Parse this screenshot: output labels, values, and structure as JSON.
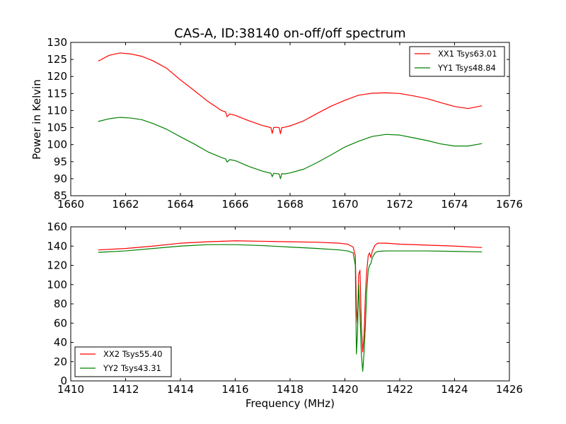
{
  "title": "CAS-A, ID:38140 on-off/off spectrum",
  "colors": {
    "xx": "#ff0000",
    "yy": "#008000",
    "axes": "#000000",
    "background": "#ffffff"
  },
  "chart_data": [
    {
      "type": "line",
      "title": "CAS-A, ID:38140 on-off/off spectrum",
      "xlabel": "",
      "ylabel": "Power in Kelvin",
      "xlim": [
        1660,
        1676
      ],
      "ylim": [
        85,
        130
      ],
      "xticks": [
        "1660",
        "1662",
        "1664",
        "1666",
        "1668",
        "1670",
        "1672",
        "1674",
        "1676"
      ],
      "yticks": [
        "85",
        "90",
        "95",
        "100",
        "105",
        "110",
        "115",
        "120",
        "125",
        "130"
      ],
      "grid": false,
      "legend_position": "top-right",
      "series": [
        {
          "name": "XX1 Tsys63.01",
          "color": "#ff0000",
          "x": [
            1661.0,
            1661.4,
            1661.8,
            1662.2,
            1662.6,
            1663.0,
            1663.5,
            1664.0,
            1664.5,
            1665.0,
            1665.5,
            1665.65,
            1665.7,
            1665.8,
            1666.0,
            1666.5,
            1667.0,
            1667.3,
            1667.35,
            1667.4,
            1667.5,
            1667.6,
            1667.65,
            1667.7,
            1667.8,
            1668.0,
            1668.5,
            1669.0,
            1669.5,
            1670.0,
            1670.5,
            1671.0,
            1671.5,
            1672.0,
            1672.5,
            1673.0,
            1673.5,
            1674.0,
            1674.5,
            1675.0
          ],
          "y": [
            124.5,
            126.2,
            126.9,
            126.6,
            125.9,
            124.6,
            122.4,
            119.0,
            115.9,
            112.7,
            110.0,
            109.6,
            108.2,
            109.0,
            108.6,
            107.0,
            105.6,
            105.0,
            103.3,
            105.0,
            105.1,
            105.0,
            103.2,
            105.0,
            105.1,
            105.5,
            107.0,
            109.2,
            111.3,
            113.0,
            114.5,
            115.1,
            115.2,
            115.0,
            114.3,
            113.5,
            112.3,
            111.2,
            110.6,
            111.4
          ]
        },
        {
          "name": "YY1 Tsys48.84",
          "color": "#008000",
          "x": [
            1661.0,
            1661.4,
            1661.8,
            1662.2,
            1662.6,
            1663.0,
            1663.5,
            1664.0,
            1664.5,
            1665.0,
            1665.5,
            1665.65,
            1665.7,
            1665.8,
            1666.0,
            1666.5,
            1667.0,
            1667.3,
            1667.35,
            1667.4,
            1667.5,
            1667.6,
            1667.65,
            1667.7,
            1667.8,
            1668.0,
            1668.5,
            1669.0,
            1669.5,
            1670.0,
            1670.5,
            1671.0,
            1671.5,
            1672.0,
            1672.5,
            1673.0,
            1673.5,
            1674.0,
            1674.5,
            1675.0
          ],
          "y": [
            106.8,
            107.6,
            108.0,
            107.8,
            107.3,
            106.2,
            104.5,
            102.3,
            100.2,
            97.9,
            96.2,
            95.8,
            94.9,
            95.6,
            95.3,
            93.6,
            92.2,
            91.6,
            90.6,
            91.6,
            91.5,
            91.4,
            90.0,
            91.5,
            91.4,
            91.7,
            92.8,
            94.8,
            97.0,
            99.3,
            101.0,
            102.4,
            103.0,
            102.8,
            102.0,
            101.2,
            100.2,
            99.6,
            99.6,
            100.3
          ]
        }
      ]
    },
    {
      "type": "line",
      "title": "",
      "xlabel": "Frequency (MHz)",
      "ylabel": "",
      "xlim": [
        1410,
        1426
      ],
      "ylim": [
        0,
        160
      ],
      "xticks": [
        "1410",
        "1412",
        "1414",
        "1416",
        "1418",
        "1420",
        "1422",
        "1424",
        "1426"
      ],
      "yticks": [
        "0",
        "20",
        "40",
        "60",
        "80",
        "100",
        "120",
        "140",
        "160"
      ],
      "grid": false,
      "legend_position": "bottom-left",
      "series": [
        {
          "name": "XX2 Tsys55.40",
          "color": "#ff0000",
          "x": [
            1411.0,
            1412.0,
            1413.0,
            1414.0,
            1415.0,
            1416.0,
            1417.0,
            1418.0,
            1419.0,
            1419.8,
            1420.1,
            1420.3,
            1420.38,
            1420.42,
            1420.46,
            1420.5,
            1420.55,
            1420.6,
            1420.65,
            1420.7,
            1420.75,
            1420.8,
            1420.85,
            1420.9,
            1420.95,
            1421.0,
            1421.1,
            1421.2,
            1421.5,
            1422.0,
            1423.0,
            1424.0,
            1425.0
          ],
          "y": [
            136.0,
            137.5,
            140.0,
            143.0,
            144.5,
            145.5,
            145.0,
            144.5,
            144.0,
            143.0,
            142.0,
            139.0,
            130.0,
            75.0,
            60.0,
            110.0,
            115.0,
            58.0,
            30.0,
            48.0,
            92.0,
            115.0,
            130.0,
            133.0,
            128.0,
            135.0,
            141.0,
            143.0,
            143.0,
            142.0,
            141.0,
            140.0,
            138.5
          ]
        },
        {
          "name": "YY2 Tsys43.31",
          "color": "#008000",
          "x": [
            1411.0,
            1412.0,
            1413.0,
            1414.0,
            1415.0,
            1416.0,
            1417.0,
            1418.0,
            1419.0,
            1419.8,
            1420.1,
            1420.3,
            1420.38,
            1420.42,
            1420.46,
            1420.5,
            1420.55,
            1420.6,
            1420.65,
            1420.7,
            1420.75,
            1420.8,
            1420.85,
            1420.9,
            1420.95,
            1421.0,
            1421.1,
            1421.2,
            1421.5,
            1422.0,
            1423.0,
            1424.0,
            1425.0
          ],
          "y": [
            133.5,
            135.0,
            137.5,
            140.0,
            141.5,
            141.5,
            140.5,
            139.0,
            137.5,
            136.0,
            135.0,
            133.0,
            120.0,
            28.0,
            50.0,
            100.0,
            70.0,
            28.0,
            10.0,
            30.0,
            60.0,
            95.0,
            115.0,
            120.0,
            122.0,
            128.0,
            133.0,
            134.5,
            135.0,
            135.0,
            135.0,
            134.5,
            134.0
          ]
        }
      ]
    }
  ]
}
